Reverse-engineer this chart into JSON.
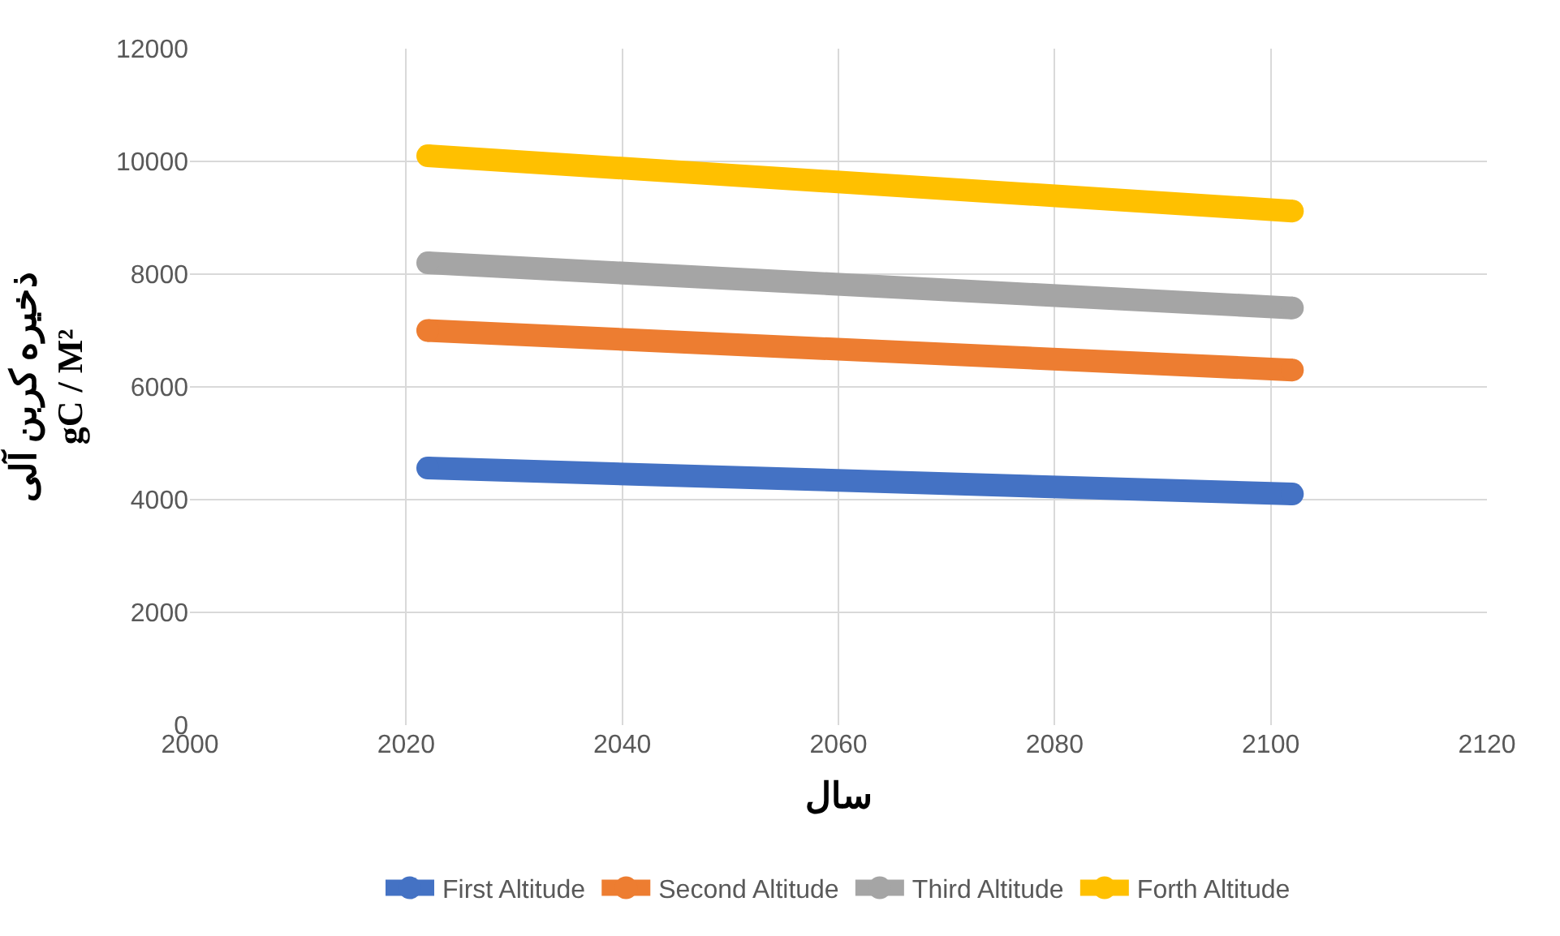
{
  "chart_data": {
    "type": "line",
    "xlabel": "سال",
    "ylabel": "ذخیره کربن آلی\ngC / M²",
    "xlim": [
      2000,
      2120
    ],
    "xticks": [
      2000,
      2020,
      2040,
      2060,
      2080,
      2100,
      2120
    ],
    "ylim": [
      0,
      12000
    ],
    "yticks": [
      0,
      2000,
      4000,
      6000,
      8000,
      10000,
      12000
    ],
    "grid": true,
    "legend": "bottom",
    "marker": "circle",
    "line_style": "solid",
    "x": [
      2022,
      2102
    ],
    "series": [
      {
        "name": "First Altitude",
        "color": "#4472c4",
        "values": [
          4560,
          4100
        ]
      },
      {
        "name": "Second Altitude",
        "color": "#ed7d31",
        "values": [
          7000,
          6300
        ]
      },
      {
        "name": "Third Altitude",
        "color": "#a5a5a5",
        "values": [
          8200,
          7400
        ]
      },
      {
        "name": "Forth Altitude",
        "color": "#ffc000",
        "values": [
          10100,
          9120
        ]
      }
    ]
  }
}
